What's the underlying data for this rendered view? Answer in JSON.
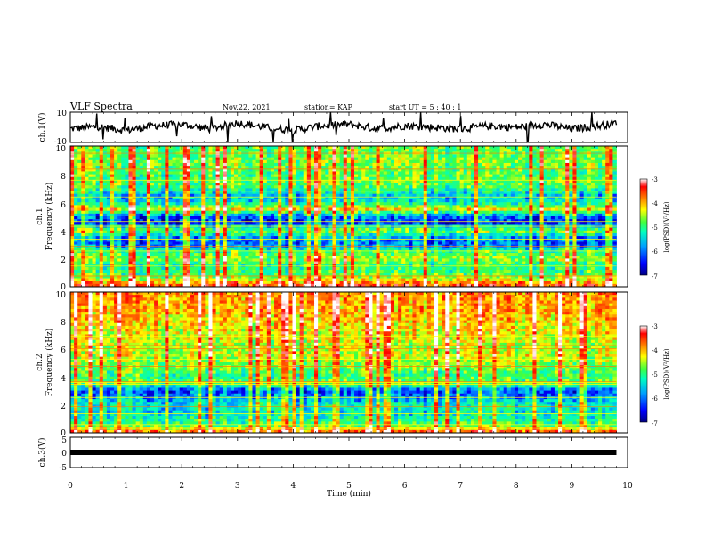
{
  "header": {
    "title": "VLF Spectra",
    "date": "Nov.22, 2021",
    "station": "station= KAP",
    "start_ut": "start UT =  5 : 40 : 1"
  },
  "colors": {
    "spectrogram_scale": [
      "#000080",
      "#0000ff",
      "#00a0ff",
      "#00ffc0",
      "#40ff40",
      "#ffff00",
      "#ff8000",
      "#ff0000",
      "#ffffff"
    ],
    "trace": "#000000"
  },
  "chart_data": [
    {
      "type": "line",
      "name": "ch1-waveform",
      "ylabel": "ch.1(V)",
      "ylim": [
        -10,
        10
      ],
      "yticks": [
        "10",
        "-10"
      ],
      "xlim": [
        0,
        10
      ],
      "x": [
        0,
        0.5,
        1,
        1.5,
        2,
        2.5,
        3,
        3.5,
        4,
        4.5,
        5,
        5.5,
        6,
        6.5,
        7,
        7.5,
        8,
        8.5,
        9,
        9.5,
        9.8
      ],
      "y": [
        -1,
        0.5,
        -2,
        1,
        2,
        -1,
        3,
        0,
        -2,
        1,
        2,
        -1,
        1,
        0,
        -1,
        1,
        0,
        2,
        -1,
        1,
        3
      ]
    },
    {
      "type": "heatmap",
      "name": "ch1-spectrogram",
      "ylabel": "Frequency (kHz)",
      "channel_label": "ch.1",
      "ylim": [
        0,
        10
      ],
      "yticks": [
        "0",
        "2",
        "4",
        "6",
        "8",
        "10"
      ],
      "xlim": [
        0,
        10
      ],
      "colorbar": {
        "label": "log(PSD)(V²/Hz)",
        "ticks": [
          "-3",
          "-4",
          "-5",
          "-6",
          "-7"
        ],
        "range": [
          -7,
          -3
        ]
      },
      "freq_profile_khz": [
        0,
        0.5,
        1,
        1.5,
        2,
        2.5,
        3,
        3.5,
        4,
        4.5,
        5,
        5.5,
        6,
        6.5,
        7,
        7.5,
        8,
        8.5,
        9,
        9.5,
        10
      ],
      "freq_profile_logpsd": [
        -3.5,
        -4.5,
        -5.2,
        -5.3,
        -4.8,
        -5.2,
        -6.2,
        -6.0,
        -4.8,
        -6.4,
        -6.2,
        -4.5,
        -5.6,
        -5.8,
        -5.2,
        -5.0,
        -5.1,
        -5.0,
        -4.9,
        -5.0,
        -5.0
      ]
    },
    {
      "type": "heatmap",
      "name": "ch2-spectrogram",
      "ylabel": "Frequency (kHz)",
      "channel_label": "ch.2",
      "ylim": [
        0,
        10
      ],
      "yticks": [
        "0",
        "2",
        "4",
        "6",
        "8",
        "10"
      ],
      "xlim": [
        0,
        10
      ],
      "colorbar": {
        "label": "log(PSD)(V²/Hz)",
        "ticks": [
          "-3",
          "-4",
          "-5",
          "-6",
          "-7"
        ],
        "range": [
          -7,
          -3
        ]
      },
      "freq_profile_khz": [
        0,
        0.5,
        1,
        1.5,
        2,
        2.5,
        3,
        3.5,
        4,
        4.5,
        5,
        5.5,
        6,
        6.5,
        7,
        7.5,
        8,
        8.5,
        9,
        9.5,
        10
      ],
      "freq_profile_logpsd": [
        -3.6,
        -5.0,
        -5.4,
        -5.6,
        -5.5,
        -6.0,
        -6.3,
        -5.0,
        -5.2,
        -5.0,
        -4.8,
        -4.6,
        -4.7,
        -4.6,
        -4.5,
        -4.4,
        -4.3,
        -4.2,
        -4.1,
        -4.1,
        -4.0
      ]
    },
    {
      "type": "line",
      "name": "ch3-waveform",
      "ylabel": "ch.3(V)",
      "ylim": [
        -5,
        5
      ],
      "yticks": [
        "5",
        "0",
        "-5"
      ],
      "xlim": [
        0,
        10
      ],
      "xlabel": "Time (min)",
      "xticks": [
        "0",
        "1",
        "2",
        "3",
        "4",
        "5",
        "6",
        "7",
        "8",
        "9",
        "10"
      ],
      "x": [
        0,
        9.8
      ],
      "y": [
        0,
        0
      ]
    }
  ]
}
